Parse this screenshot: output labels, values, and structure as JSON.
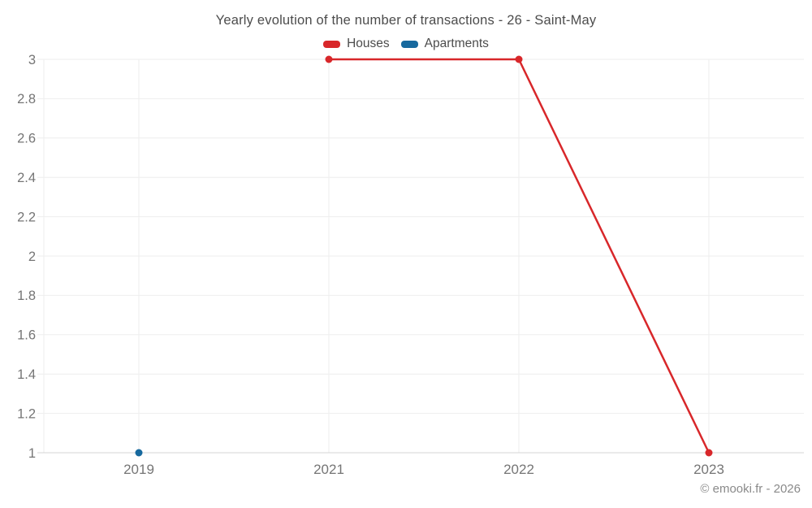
{
  "header": {
    "title": "Yearly evolution of the number of transactions - 26 - Saint-May"
  },
  "footer": {
    "credit": "© emooki.fr - 2026"
  },
  "colors": {
    "houses": "#d8272a",
    "apartments": "#17699e",
    "gridline": "#eeeeee",
    "axis_line": "#d4d4d4",
    "tick_label": "#757575",
    "title_text": "#4c4c4c",
    "credit_text": "#8a8a8a"
  },
  "chart_data": {
    "type": "line",
    "title": "Yearly evolution of the number of transactions - 26 - Saint-May",
    "categories": [
      "2019",
      "2021",
      "2022",
      "2023"
    ],
    "series": [
      {
        "name": "Houses",
        "color": "#d8272a",
        "values": [
          null,
          3,
          3,
          1
        ]
      },
      {
        "name": "Apartments",
        "color": "#17699e",
        "values": [
          1,
          null,
          null,
          null
        ]
      }
    ],
    "xlabel": "",
    "ylabel": "",
    "ylim": [
      1,
      3
    ],
    "yticks": [
      1,
      1.2,
      1.4,
      1.6,
      1.8,
      2,
      2.2,
      2.4,
      2.6,
      2.8,
      3
    ],
    "grid": true,
    "legend_position": "top",
    "credit": "© emooki.fr - 2026"
  }
}
